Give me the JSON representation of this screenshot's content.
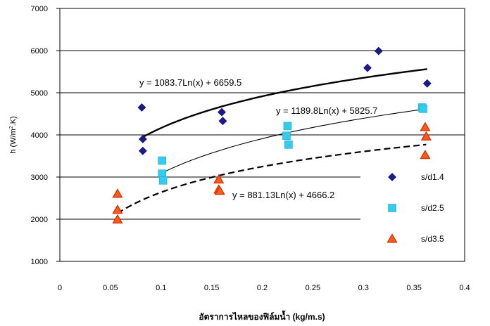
{
  "chart_data": {
    "type": "scatter",
    "title": "",
    "xlabel": "อัตราการไหลของฟิล์มน้ำ (kg/m.s)",
    "ylabel": "h (W/m².K)",
    "ylabel_parts": {
      "main": "h (W/m",
      "sup": "2",
      "end": ".K)"
    },
    "xlim": [
      0,
      0.4
    ],
    "ylim": [
      1000,
      7000
    ],
    "xticks": [
      0,
      0.05,
      0.1,
      0.15,
      0.2,
      0.25,
      0.3,
      0.35,
      0.4
    ],
    "xtick_labels": [
      "0",
      "0.05",
      "0.1",
      "0.15",
      "0.2",
      "0.25",
      "0.3",
      "0.35",
      "0.4"
    ],
    "yticks": [
      1000,
      2000,
      3000,
      4000,
      5000,
      6000,
      7000
    ],
    "ytick_labels": [
      "1000",
      "2000",
      "3000",
      "4000",
      "5000",
      "6000",
      "7000"
    ],
    "grid": "horizontal",
    "legend_position": "right",
    "series": [
      {
        "name": "s/d1.4",
        "marker": "diamond",
        "color": "#1a1a8c",
        "points": [
          [
            0.081,
            4650
          ],
          [
            0.082,
            3900
          ],
          [
            0.082,
            3620
          ],
          [
            0.16,
            4540
          ],
          [
            0.161,
            4330
          ],
          [
            0.304,
            5590
          ],
          [
            0.315,
            5990
          ],
          [
            0.363,
            5220
          ]
        ],
        "trend": {
          "a": 1083.7,
          "b": 6659.5,
          "label": "y = 1083.7Ln(x) + 6659.5",
          "style": "thick",
          "color": "#000000",
          "x_range": [
            0.081,
            0.363
          ]
        }
      },
      {
        "name": "s/d2.5",
        "marker": "square",
        "color": "#33ccee",
        "points": [
          [
            0.101,
            3390
          ],
          [
            0.101,
            3080
          ],
          [
            0.102,
            2920
          ],
          [
            0.224,
            3980
          ],
          [
            0.225,
            4210
          ],
          [
            0.226,
            3770
          ],
          [
            0.358,
            4650
          ],
          [
            0.359,
            4620
          ]
        ],
        "trend": {
          "a": 1189.8,
          "b": 5825.7,
          "label": "y = 1189.8Ln(x) + 5825.7",
          "style": "thin",
          "color": "#000000",
          "x_range": [
            0.101,
            0.36
          ]
        }
      },
      {
        "name": "s/d3.5",
        "marker": "triangle",
        "color": "#ff5a1a",
        "edge": "#cc2a00",
        "points": [
          [
            0.057,
            2600
          ],
          [
            0.057,
            2220
          ],
          [
            0.057,
            1990
          ],
          [
            0.157,
            2940
          ],
          [
            0.157,
            2700
          ],
          [
            0.158,
            2670
          ],
          [
            0.361,
            4180
          ],
          [
            0.362,
            3960
          ],
          [
            0.361,
            3520
          ]
        ],
        "trend": {
          "a": 881.13,
          "b": 4666.2,
          "label": "y = 881.13Ln(x) + 4666.2",
          "style": "dashed",
          "color": "#000000",
          "x_range": [
            0.057,
            0.362
          ]
        }
      }
    ]
  }
}
